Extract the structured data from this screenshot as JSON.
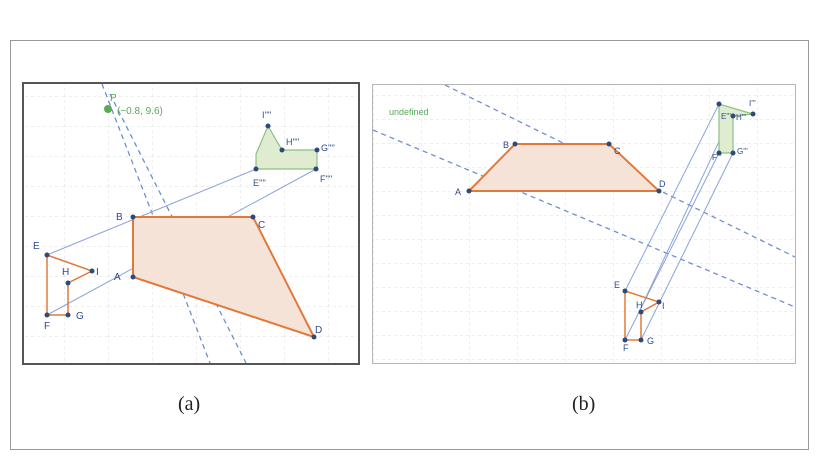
{
  "captions": {
    "a": "(a)",
    "b": "(b)"
  },
  "colors": {
    "polygon_stroke": "#e07a3a",
    "polygon_fill": "#f6e3d8",
    "image_fill": "#dfeccf",
    "image_stroke": "#5da55a",
    "line": "#6f8fcf",
    "point": "#2e4a7a",
    "label": "#2e4a8a",
    "green_label": "#5aa85a",
    "grid": "#dcdcdc"
  },
  "panel_a": {
    "point_p": {
      "name": "P",
      "coords": "(−0.8, 9.6)"
    },
    "labels": {
      "A": "A",
      "B": "B",
      "C": "C",
      "D": "D",
      "E": "E",
      "F": "F",
      "G": "G",
      "H": "H",
      "I": "I",
      "E2": "E''''",
      "F2": "F''''",
      "G2": "G''''",
      "H2": "H''''",
      "I2": "I''''"
    }
  },
  "panel_b": {
    "undefined_label": "undefined",
    "labels": {
      "A": "A",
      "B": "B",
      "C": "C",
      "D": "D",
      "E": "E",
      "F": "F",
      "G": "G",
      "H": "H",
      "I": "I",
      "E2": "E'''",
      "F2": "F'''",
      "G2": "G'''",
      "H2": "H'''",
      "I2": "I'''"
    }
  }
}
